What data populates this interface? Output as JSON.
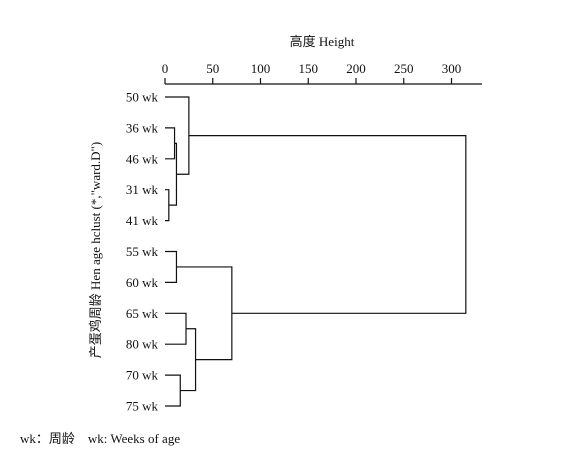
{
  "chart_data": {
    "type": "dendrogram",
    "title": "",
    "xlabel": "高度 Height",
    "ylabel": "产蛋鸡周龄 Hen age hclust (*,\"ward.D\")",
    "axis_position": "top",
    "xlim": [
      0,
      330
    ],
    "ticks": [
      0,
      50,
      100,
      150,
      200,
      250,
      300
    ],
    "tick_labels": [
      "0",
      "50",
      "100",
      "150",
      "200",
      "250",
      "300"
    ],
    "leaves": [
      "50 wk",
      "36 wk",
      "46 wk",
      "31 wk",
      "41 wk",
      "55 wk",
      "60 wk",
      "65 wk",
      "80 wk",
      "70 wk",
      "75 wk"
    ],
    "merges": [
      {
        "left": "36 wk",
        "right": "46 wk",
        "height": 10
      },
      {
        "left": "31 wk",
        "right": "41 wk",
        "height": 4
      },
      {
        "left": "m1",
        "right": "m2",
        "height": 12,
        "id": "m3"
      },
      {
        "left": "50 wk",
        "right": "m3",
        "height": 25,
        "id": "m4"
      },
      {
        "left": "55 wk",
        "right": "60 wk",
        "height": 12,
        "id": "m5"
      },
      {
        "left": "65 wk",
        "right": "80 wk",
        "height": 22,
        "id": "m6"
      },
      {
        "left": "70 wk",
        "right": "75 wk",
        "height": 16,
        "id": "m7"
      },
      {
        "left": "m6",
        "right": "m7",
        "height": 32,
        "id": "m8"
      },
      {
        "left": "m5",
        "right": "m8",
        "height": 70,
        "id": "m9"
      },
      {
        "left": "m4",
        "right": "m9",
        "height": 315,
        "id": "m10"
      }
    ],
    "footnote": "wk：周龄    wk: Weeks of age"
  }
}
